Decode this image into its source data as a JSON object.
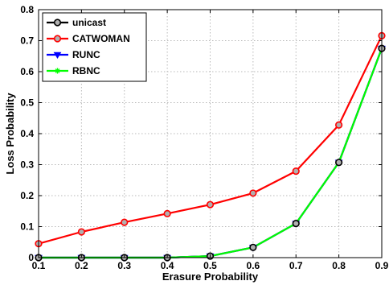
{
  "chart_data": {
    "type": "line",
    "title": "",
    "xlabel": "Erasure Probability",
    "ylabel": "Loss Probability",
    "xlim": [
      0.1,
      0.9
    ],
    "ylim": [
      0,
      0.8
    ],
    "xticks": [
      0.1,
      0.2,
      0.3,
      0.4,
      0.5,
      0.6,
      0.7,
      0.8,
      0.9
    ],
    "yticks": [
      0,
      0.1,
      0.2,
      0.3,
      0.4,
      0.5,
      0.6,
      0.7,
      0.8
    ],
    "xtick_labels": [
      "0.1",
      "0.2",
      "0.3",
      "0.4",
      "0.5",
      "0.6",
      "0.7",
      "0.8",
      "0.9"
    ],
    "ytick_labels": [
      "0",
      "0.1",
      "0.2",
      "0.3",
      "0.4",
      "0.5",
      "0.6",
      "0.7",
      "0.8"
    ],
    "grid": true,
    "legend_position": "top-left",
    "x": [
      0.1,
      0.2,
      0.3,
      0.4,
      0.5,
      0.6,
      0.7,
      0.8,
      0.9
    ],
    "series": [
      {
        "name": "unicast",
        "color": "#000000",
        "marker": "circle",
        "values": [
          0.0,
          0.0,
          0.0,
          0.0,
          0.005,
          0.033,
          0.11,
          0.307,
          0.675
        ]
      },
      {
        "name": "CATWOMAN",
        "color": "#ff0000",
        "marker": "circle",
        "values": [
          0.045,
          0.083,
          0.114,
          0.142,
          0.171,
          0.208,
          0.279,
          0.428,
          0.716
        ]
      },
      {
        "name": "RUNC",
        "color": "#0000ff",
        "marker": "triangle-down",
        "values": [
          0.0,
          0.0,
          0.0,
          0.0,
          0.005,
          0.033,
          0.11,
          0.307,
          0.675
        ]
      },
      {
        "name": "RBNC",
        "color": "#00ff00",
        "marker": "star",
        "values": [
          0.0,
          0.0,
          0.0,
          0.0,
          0.005,
          0.033,
          0.11,
          0.307,
          0.675
        ]
      }
    ]
  }
}
